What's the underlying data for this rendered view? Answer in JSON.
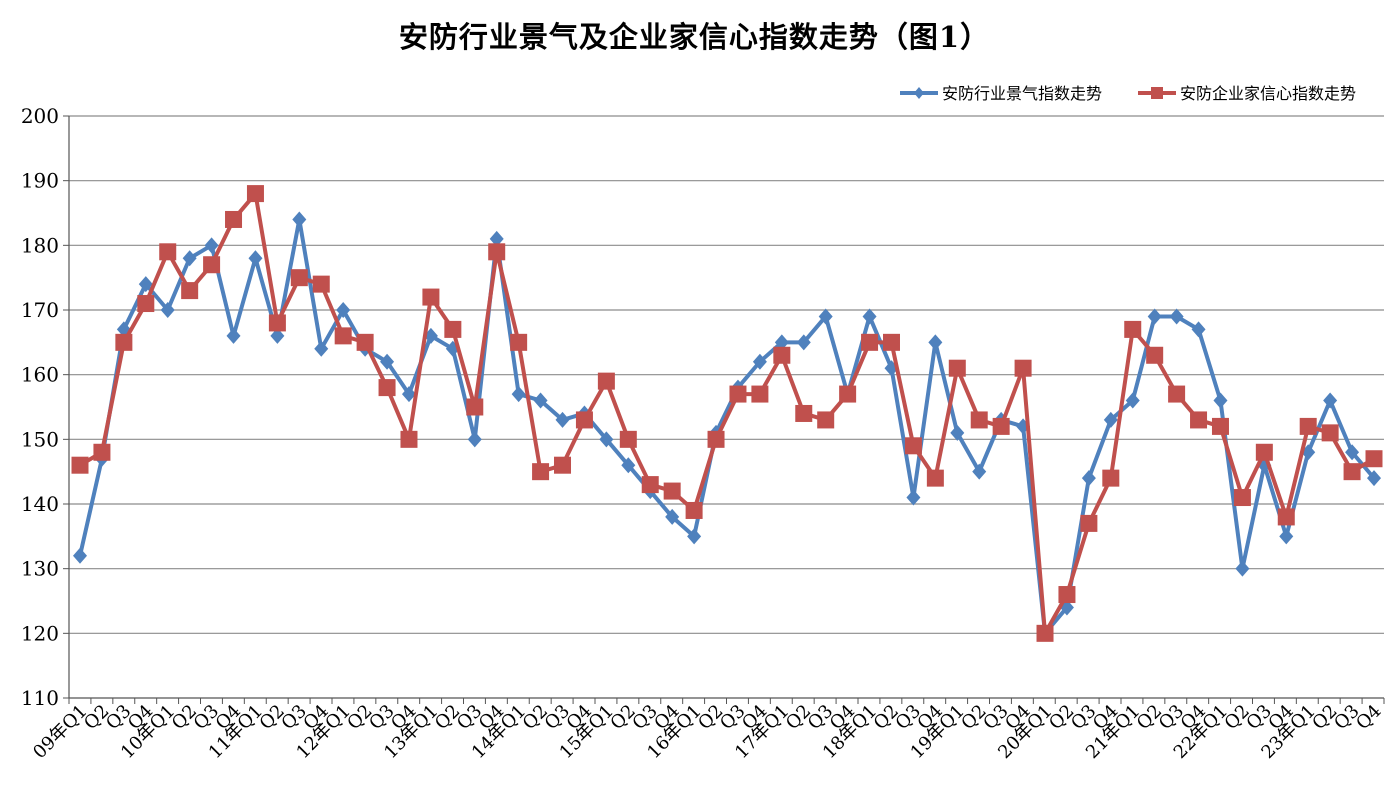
{
  "chart_data": {
    "type": "line",
    "title": "安防行业景气及企业家信心指数走势（图1）",
    "xlabel": "",
    "ylabel": "",
    "ylim": [
      110,
      200
    ],
    "yticks": [
      110,
      120,
      130,
      140,
      150,
      160,
      170,
      180,
      190,
      200
    ],
    "legend_position": "top-right",
    "grid": "horizontal",
    "categories": [
      "09年Q1",
      "Q2",
      "Q3",
      "Q4",
      "10年Q1",
      "Q2",
      "Q3",
      "Q4",
      "11年Q1",
      "Q2",
      "Q3",
      "Q4",
      "12年Q1",
      "Q2",
      "Q3",
      "Q4",
      "13年Q1",
      "Q2",
      "Q3",
      "Q4",
      "14年Q1",
      "Q2",
      "Q3",
      "Q4",
      "15年Q1",
      "Q2",
      "Q3",
      "Q4",
      "16年Q1",
      "Q2",
      "Q3",
      "Q4",
      "17年Q1",
      "Q2",
      "Q3",
      "Q4",
      "18年Q1",
      "Q2",
      "Q3",
      "Q4",
      "19年Q1",
      "Q2",
      "Q3",
      "Q4",
      "20年Q1",
      "Q2",
      "Q3",
      "Q4",
      "21年Q1",
      "Q2",
      "Q3",
      "Q4",
      "22年Q1",
      "Q2",
      "Q3",
      "Q4",
      "23年Q1",
      "Q2",
      "Q3",
      "Q4"
    ],
    "series": [
      {
        "name": "安防行业景气指数走势",
        "color": "#4F81BD",
        "marker": "diamond",
        "values": [
          132,
          147,
          167,
          174,
          170,
          178,
          180,
          166,
          178,
          166,
          184,
          164,
          170,
          164,
          162,
          157,
          166,
          164,
          150,
          181,
          157,
          156,
          153,
          154,
          150,
          146,
          142,
          138,
          135,
          151,
          158,
          162,
          165,
          165,
          169,
          157,
          169,
          161,
          141,
          165,
          151,
          145,
          153,
          152,
          120,
          124,
          144,
          153,
          156,
          169,
          169,
          167,
          156,
          130,
          146,
          135,
          148,
          156,
          148,
          144
        ]
      },
      {
        "name": "安防企业家信心指数走势",
        "color": "#C0504D",
        "marker": "square",
        "values": [
          146,
          148,
          165,
          171,
          179,
          173,
          177,
          184,
          188,
          168,
          175,
          174,
          166,
          165,
          158,
          150,
          172,
          167,
          155,
          179,
          165,
          145,
          146,
          153,
          159,
          150,
          143,
          142,
          139,
          150,
          157,
          157,
          163,
          154,
          153,
          157,
          165,
          165,
          149,
          144,
          161,
          153,
          152,
          161,
          120,
          126,
          137,
          144,
          167,
          163,
          157,
          153,
          152,
          141,
          148,
          138,
          152,
          151,
          145,
          147
        ]
      }
    ]
  }
}
